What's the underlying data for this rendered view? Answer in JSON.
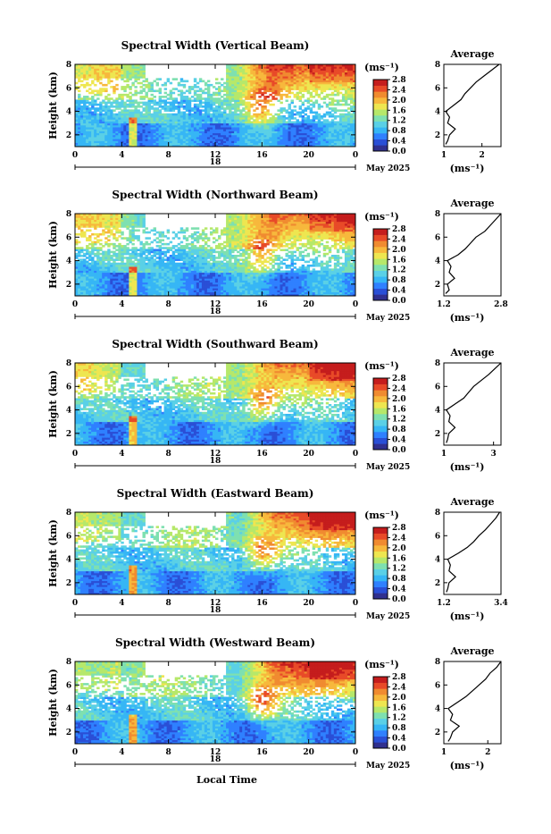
{
  "figure": {
    "xaxis_title": "Local Time",
    "day_label": "18",
    "month_label": "May 2025",
    "x_ticks": [
      "0",
      "4",
      "8",
      "12",
      "16",
      "20",
      "0"
    ],
    "y_ticks": [
      "2",
      "4",
      "6",
      "8"
    ],
    "ylabel": "Height (km)",
    "colorbar_unit": "(ms⁻¹)",
    "colorbar_ticks": [
      "0.0",
      "0.4",
      "0.8",
      "1.2",
      "1.6",
      "2.0",
      "2.4",
      "2.8"
    ],
    "average_title": "Average",
    "average_xlabel": "(ms⁻¹)",
    "colors": [
      "#30308f",
      "#2a4fd6",
      "#2f80ff",
      "#36b6f5",
      "#5ad0e6",
      "#7ee0b0",
      "#b6e86a",
      "#eee650",
      "#f7b83c",
      "#f08b30",
      "#e84a28",
      "#c51d1d"
    ]
  },
  "chart_data": [
    {
      "type": "heatmap",
      "title": "Spectral Width (Vertical Beam)",
      "xlabel": "",
      "ylabel": "Height (km)",
      "xlim": [
        0,
        24
      ],
      "ylim": [
        1,
        8
      ],
      "zlim": [
        0,
        2.8
      ],
      "grid": false,
      "average": {
        "type": "line",
        "title": "Average",
        "xlabel": "(ms⁻¹)",
        "xlim": [
          1,
          2.5
        ],
        "x_ticks": [
          "1",
          "2"
        ],
        "height": [
          1.2,
          1.5,
          2.0,
          2.5,
          3.0,
          3.5,
          4.0,
          4.5,
          5.0,
          5.5,
          6.0,
          6.5,
          7.0,
          7.5,
          8.0
        ],
        "values": [
          1.05,
          1.1,
          1.15,
          1.3,
          1.1,
          1.15,
          1.05,
          1.25,
          1.45,
          1.55,
          1.7,
          1.85,
          2.05,
          2.25,
          2.45
        ]
      }
    },
    {
      "type": "heatmap",
      "title": "Spectral Width (Northward Beam)",
      "xlabel": "",
      "ylabel": "Height (km)",
      "xlim": [
        0,
        24
      ],
      "ylim": [
        1,
        8
      ],
      "zlim": [
        0,
        2.8
      ],
      "grid": false,
      "average": {
        "type": "line",
        "title": "Average",
        "xlabel": "(ms⁻¹)",
        "xlim": [
          1.2,
          2.8
        ],
        "x_ticks": [
          "1.2",
          "2.8"
        ],
        "height": [
          1.2,
          1.5,
          2.0,
          2.5,
          3.0,
          3.5,
          4.0,
          4.5,
          5.0,
          5.5,
          6.0,
          6.5,
          7.0,
          7.5,
          8.0
        ],
        "values": [
          1.25,
          1.35,
          1.3,
          1.5,
          1.35,
          1.4,
          1.3,
          1.6,
          1.8,
          1.95,
          2.1,
          2.35,
          2.5,
          2.65,
          2.8
        ]
      }
    },
    {
      "type": "heatmap",
      "title": "Spectral Width (Southward Beam)",
      "xlabel": "",
      "ylabel": "Height (km)",
      "xlim": [
        0,
        24
      ],
      "ylim": [
        1,
        8
      ],
      "zlim": [
        0,
        2.8
      ],
      "grid": false,
      "average": {
        "type": "line",
        "title": "Average",
        "xlabel": "(ms⁻¹)",
        "xlim": [
          1,
          3.3
        ],
        "x_ticks": [
          "1",
          "3"
        ],
        "height": [
          1.2,
          1.5,
          2.0,
          2.5,
          3.0,
          3.5,
          4.0,
          4.5,
          5.0,
          5.5,
          6.0,
          6.5,
          7.0,
          7.5,
          8.0
        ],
        "values": [
          1.1,
          1.15,
          1.2,
          1.45,
          1.2,
          1.25,
          1.1,
          1.45,
          1.8,
          2.0,
          2.2,
          2.5,
          2.8,
          3.05,
          3.3
        ]
      }
    },
    {
      "type": "heatmap",
      "title": "Spectral Width (Eastward Beam)",
      "xlabel": "",
      "ylabel": "Height (km)",
      "xlim": [
        0,
        24
      ],
      "ylim": [
        1,
        8
      ],
      "zlim": [
        0,
        2.8
      ],
      "grid": false,
      "average": {
        "type": "line",
        "title": "Average",
        "xlabel": "(ms⁻¹)",
        "xlim": [
          1.2,
          3.4
        ],
        "x_ticks": [
          "1.2",
          "3.4"
        ],
        "height": [
          1.2,
          1.5,
          2.0,
          2.5,
          3.0,
          3.5,
          4.0,
          4.5,
          5.0,
          5.5,
          6.0,
          6.5,
          7.0,
          7.5,
          8.0
        ],
        "values": [
          1.3,
          1.35,
          1.4,
          1.65,
          1.4,
          1.45,
          1.35,
          1.75,
          2.1,
          2.35,
          2.55,
          2.8,
          3.0,
          3.2,
          3.35
        ]
      }
    },
    {
      "type": "heatmap",
      "title": "Spectral Width (Westward Beam)",
      "xlabel": "Local Time",
      "ylabel": "Height (km)",
      "xlim": [
        0,
        24
      ],
      "ylim": [
        1,
        8
      ],
      "zlim": [
        0,
        2.8
      ],
      "grid": false,
      "average": {
        "type": "line",
        "title": "Average",
        "xlabel": "(ms⁻¹)",
        "xlim": [
          1,
          2.3
        ],
        "x_ticks": [
          "1",
          "2"
        ],
        "height": [
          1.2,
          1.5,
          2.0,
          2.5,
          3.0,
          3.5,
          4.0,
          4.5,
          5.0,
          5.5,
          6.0,
          6.5,
          7.0,
          7.5,
          8.0
        ],
        "values": [
          1.1,
          1.15,
          1.2,
          1.35,
          1.15,
          1.2,
          1.1,
          1.3,
          1.5,
          1.65,
          1.8,
          1.95,
          2.05,
          2.2,
          2.3
        ]
      }
    }
  ]
}
